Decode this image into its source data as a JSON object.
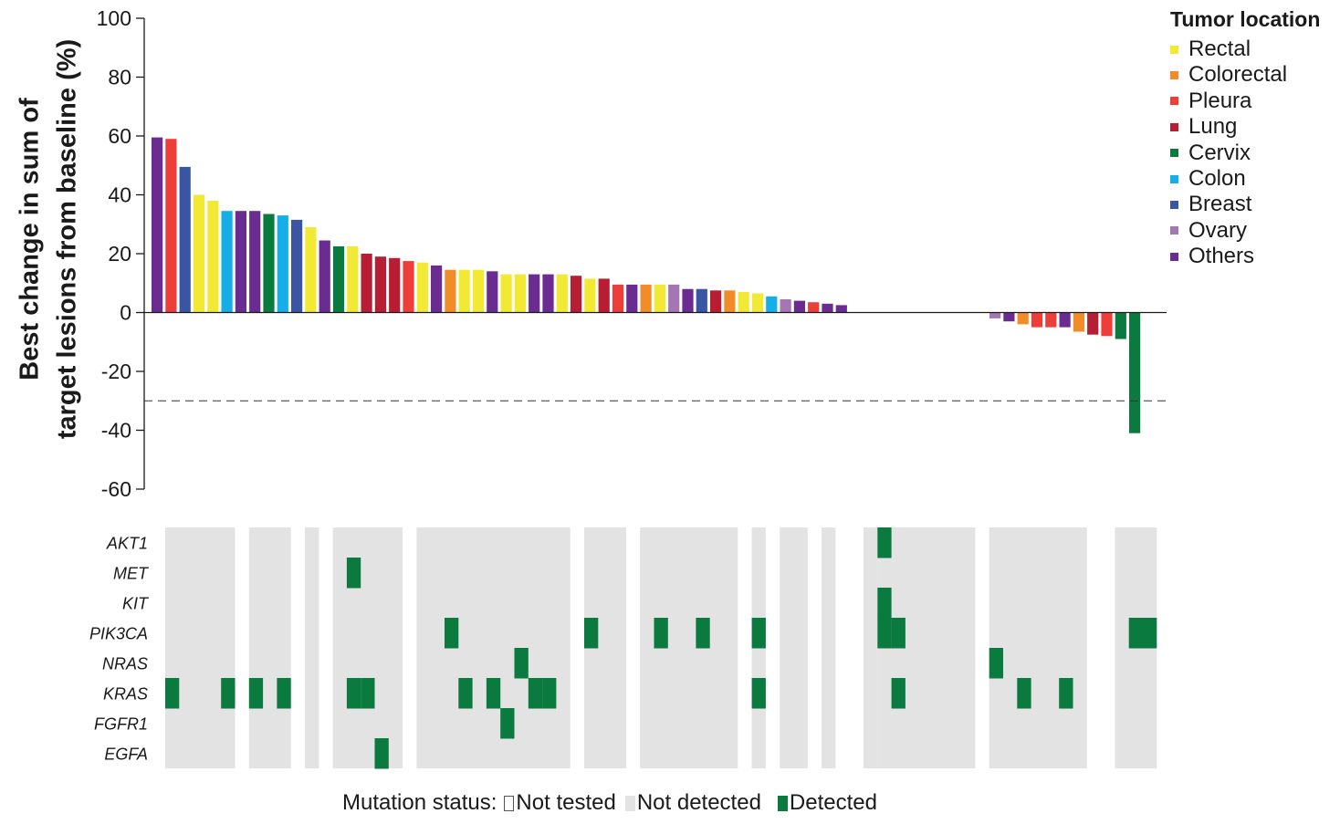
{
  "chart_data": {
    "type": "bar",
    "ylabel_line1": "Best change in sum of",
    "ylabel_line2": "target lesions from baseline (%)",
    "ylim": [
      -60,
      100
    ],
    "yticks": [
      "100",
      "80",
      "60",
      "40",
      "20",
      "0",
      "-20",
      "-40",
      "-60"
    ],
    "reference_line": -30,
    "legend": {
      "title": "Tumor location",
      "placement": "top-right",
      "items": [
        {
          "label": "Rectal",
          "color": "#f2e934"
        },
        {
          "label": "Colorectal",
          "color": "#f28c28"
        },
        {
          "label": "Pleura",
          "color": "#ee3e3a"
        },
        {
          "label": "Lung",
          "color": "#b81e33"
        },
        {
          "label": "Cervix",
          "color": "#0b7a3e"
        },
        {
          "label": "Colon",
          "color": "#16aee6"
        },
        {
          "label": "Breast",
          "color": "#3a55a4"
        },
        {
          "label": "Ovary",
          "color": "#a477b3"
        },
        {
          "label": "Others",
          "color": "#6a2c91"
        }
      ]
    },
    "n_patients": 72,
    "bars": [
      {
        "pos": 0,
        "value": 59.5,
        "location": "Others"
      },
      {
        "pos": 1,
        "value": 59.0,
        "location": "Pleura"
      },
      {
        "pos": 2,
        "value": 49.5,
        "location": "Breast"
      },
      {
        "pos": 3,
        "value": 40.0,
        "location": "Rectal"
      },
      {
        "pos": 4,
        "value": 38.0,
        "location": "Rectal"
      },
      {
        "pos": 5,
        "value": 34.5,
        "location": "Colon"
      },
      {
        "pos": 6,
        "value": 34.5,
        "location": "Others"
      },
      {
        "pos": 7,
        "value": 34.5,
        "location": "Others"
      },
      {
        "pos": 8,
        "value": 33.5,
        "location": "Cervix"
      },
      {
        "pos": 9,
        "value": 33.0,
        "location": "Colon"
      },
      {
        "pos": 10,
        "value": 31.5,
        "location": "Breast"
      },
      {
        "pos": 11,
        "value": 29.0,
        "location": "Rectal"
      },
      {
        "pos": 12,
        "value": 24.5,
        "location": "Others"
      },
      {
        "pos": 13,
        "value": 22.5,
        "location": "Cervix"
      },
      {
        "pos": 14,
        "value": 22.5,
        "location": "Rectal"
      },
      {
        "pos": 15,
        "value": 20.0,
        "location": "Lung"
      },
      {
        "pos": 16,
        "value": 19.0,
        "location": "Lung"
      },
      {
        "pos": 17,
        "value": 18.5,
        "location": "Lung"
      },
      {
        "pos": 18,
        "value": 17.5,
        "location": "Pleura"
      },
      {
        "pos": 19,
        "value": 17.0,
        "location": "Rectal"
      },
      {
        "pos": 20,
        "value": 16.0,
        "location": "Others"
      },
      {
        "pos": 21,
        "value": 14.5,
        "location": "Colorectal"
      },
      {
        "pos": 22,
        "value": 14.5,
        "location": "Rectal"
      },
      {
        "pos": 23,
        "value": 14.5,
        "location": "Rectal"
      },
      {
        "pos": 24,
        "value": 14.0,
        "location": "Others"
      },
      {
        "pos": 25,
        "value": 13.0,
        "location": "Rectal"
      },
      {
        "pos": 26,
        "value": 13.0,
        "location": "Rectal"
      },
      {
        "pos": 27,
        "value": 13.0,
        "location": "Others"
      },
      {
        "pos": 28,
        "value": 13.0,
        "location": "Others"
      },
      {
        "pos": 29,
        "value": 13.0,
        "location": "Rectal"
      },
      {
        "pos": 30,
        "value": 12.5,
        "location": "Lung"
      },
      {
        "pos": 31,
        "value": 11.5,
        "location": "Rectal"
      },
      {
        "pos": 32,
        "value": 11.5,
        "location": "Lung"
      },
      {
        "pos": 33,
        "value": 9.5,
        "location": "Pleura"
      },
      {
        "pos": 34,
        "value": 9.5,
        "location": "Others"
      },
      {
        "pos": 35,
        "value": 9.5,
        "location": "Colorectal"
      },
      {
        "pos": 36,
        "value": 9.5,
        "location": "Rectal"
      },
      {
        "pos": 37,
        "value": 9.5,
        "location": "Ovary"
      },
      {
        "pos": 38,
        "value": 8.0,
        "location": "Others"
      },
      {
        "pos": 39,
        "value": 8.0,
        "location": "Breast"
      },
      {
        "pos": 40,
        "value": 7.5,
        "location": "Lung"
      },
      {
        "pos": 41,
        "value": 7.5,
        "location": "Colorectal"
      },
      {
        "pos": 42,
        "value": 7.0,
        "location": "Rectal"
      },
      {
        "pos": 43,
        "value": 6.5,
        "location": "Rectal"
      },
      {
        "pos": 44,
        "value": 5.5,
        "location": "Colon"
      },
      {
        "pos": 45,
        "value": 4.5,
        "location": "Ovary"
      },
      {
        "pos": 46,
        "value": 4.0,
        "location": "Others"
      },
      {
        "pos": 47,
        "value": 3.5,
        "location": "Pleura"
      },
      {
        "pos": 48,
        "value": 3.0,
        "location": "Others"
      },
      {
        "pos": 49,
        "value": 2.5,
        "location": "Others"
      },
      {
        "pos": 60,
        "value": -2.0,
        "location": "Ovary"
      },
      {
        "pos": 61,
        "value": -3.0,
        "location": "Others"
      },
      {
        "pos": 62,
        "value": -4.0,
        "location": "Colorectal"
      },
      {
        "pos": 63,
        "value": -5.0,
        "location": "Pleura"
      },
      {
        "pos": 64,
        "value": -5.0,
        "location": "Pleura"
      },
      {
        "pos": 65,
        "value": -5.0,
        "location": "Others"
      },
      {
        "pos": 66,
        "value": -6.5,
        "location": "Colorectal"
      },
      {
        "pos": 67,
        "value": -7.5,
        "location": "Lung"
      },
      {
        "pos": 68,
        "value": -8.0,
        "location": "Pleura"
      },
      {
        "pos": 69,
        "value": -9.0,
        "location": "Cervix"
      },
      {
        "pos": 70,
        "value": -41.0,
        "location": "Cervix"
      }
    ],
    "genes": [
      "AKT1",
      "MET",
      "KIT",
      "PIK3CA",
      "NRAS",
      "KRAS",
      "FGFR1",
      "EGFA"
    ],
    "tested_ranges": [
      [
        0,
        4
      ],
      [
        6,
        8
      ],
      [
        10,
        10
      ],
      [
        12,
        16
      ],
      [
        18,
        28
      ],
      [
        30,
        32
      ],
      [
        34,
        40
      ],
      [
        42,
        42
      ],
      [
        44,
        45
      ],
      [
        47,
        47
      ],
      [
        50,
        50
      ],
      [
        51,
        57
      ],
      [
        59,
        65
      ],
      [
        68,
        70
      ]
    ],
    "mutations": [
      {
        "gene": "AKT1",
        "positions": [
          51
        ]
      },
      {
        "gene": "MET",
        "positions": [
          13
        ]
      },
      {
        "gene": "KIT",
        "positions": [
          51
        ]
      },
      {
        "gene": "PIK3CA",
        "positions": [
          20,
          30,
          35,
          38,
          42,
          51,
          52,
          69,
          70
        ]
      },
      {
        "gene": "NRAS",
        "positions": [
          25,
          59
        ]
      },
      {
        "gene": "KRAS",
        "positions": [
          0,
          4,
          6,
          8,
          13,
          14,
          21,
          23,
          26,
          27,
          42,
          52,
          61,
          64
        ]
      },
      {
        "gene": "FGFR1",
        "positions": [
          24
        ]
      },
      {
        "gene": "EGFA",
        "positions": [
          15
        ]
      }
    ],
    "status_legend": {
      "prefix": "Mutation status:",
      "not_tested": "Not tested",
      "not_detected": "Not detected",
      "detected": "Detected",
      "not_detected_color": "#e2e3e2",
      "detected_color": "#0b7a3e"
    }
  }
}
